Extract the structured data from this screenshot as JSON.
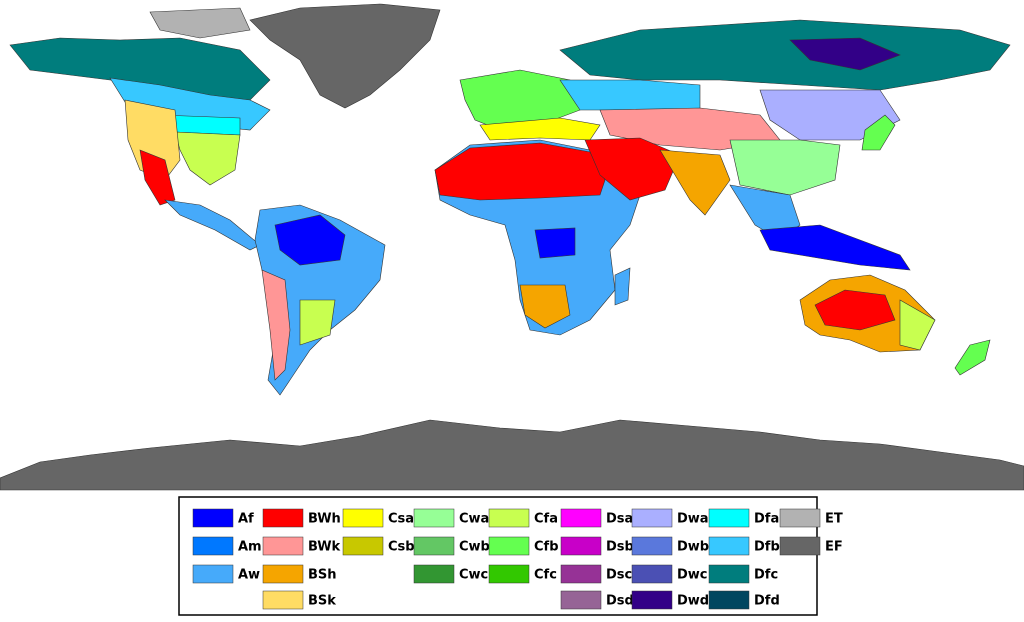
{
  "legend": {
    "columns": [
      [
        {
          "label": "Af",
          "color": "#0000ff"
        },
        {
          "label": "Am",
          "color": "#0078ff"
        },
        {
          "label": "Aw",
          "color": "#46aafa"
        }
      ],
      [
        {
          "label": "BWh",
          "color": "#ff0000"
        },
        {
          "label": "BWk",
          "color": "#ff9696"
        },
        {
          "label": "BSh",
          "color": "#f5a500"
        },
        {
          "label": "BSk",
          "color": "#ffdc64"
        }
      ],
      [
        {
          "label": "Csa",
          "color": "#ffff00"
        },
        {
          "label": "Csb",
          "color": "#c8c800"
        }
      ],
      [
        {
          "label": "Cwa",
          "color": "#96ff96"
        },
        {
          "label": "Cwb",
          "color": "#63c764"
        },
        {
          "label": "Cwc",
          "color": "#329632"
        }
      ],
      [
        {
          "label": "Cfa",
          "color": "#c8ff50"
        },
        {
          "label": "Cfb",
          "color": "#64ff50"
        },
        {
          "label": "Cfc",
          "color": "#32c800"
        }
      ],
      [
        {
          "label": "Dsa",
          "color": "#ff00ff"
        },
        {
          "label": "Dsb",
          "color": "#c800c8"
        },
        {
          "label": "Dsc",
          "color": "#963296"
        },
        {
          "label": "Dsd",
          "color": "#966496"
        }
      ],
      [
        {
          "label": "Dwa",
          "color": "#aaafff"
        },
        {
          "label": "Dwb",
          "color": "#5a78dc"
        },
        {
          "label": "Dwc",
          "color": "#4b50b4"
        },
        {
          "label": "Dwd",
          "color": "#320087"
        }
      ],
      [
        {
          "label": "Dfa",
          "color": "#00ffff"
        },
        {
          "label": "Dfb",
          "color": "#37c8ff"
        },
        {
          "label": "Dfc",
          "color": "#007d7d"
        },
        {
          "label": "Dfd",
          "color": "#00465f"
        }
      ],
      [
        {
          "label": "ET",
          "color": "#b2b2b2"
        },
        {
          "label": "EF",
          "color": "#666666"
        }
      ]
    ]
  }
}
